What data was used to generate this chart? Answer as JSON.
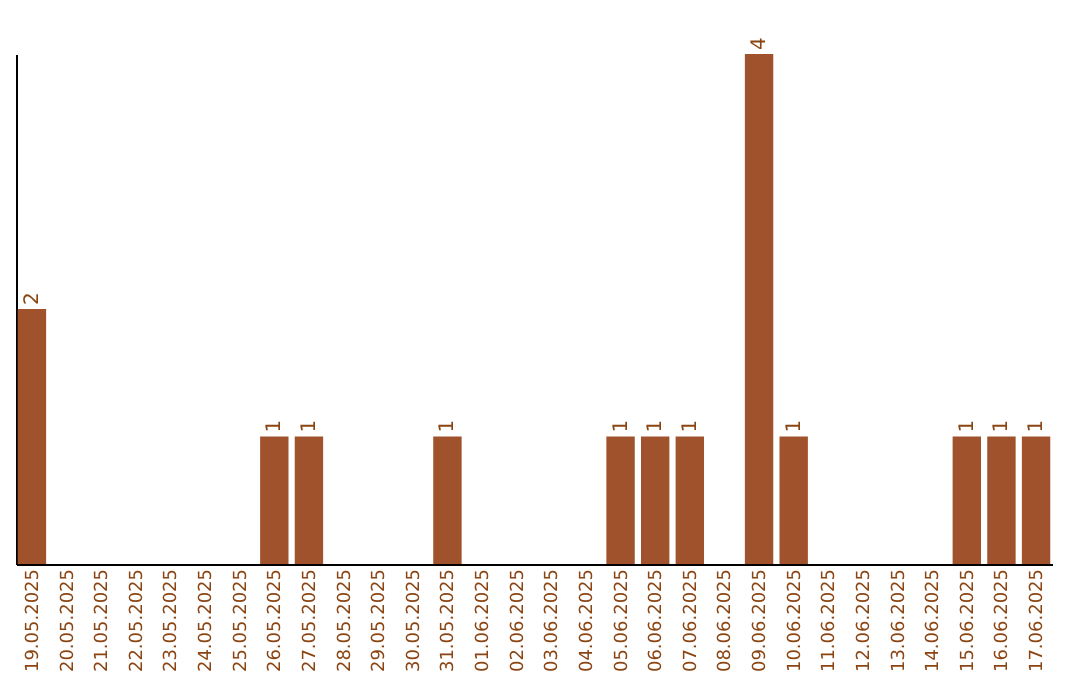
{
  "chart_data": {
    "type": "bar",
    "categories": [
      "19.05.2025",
      "20.05.2025",
      "21.05.2025",
      "22.05.2025",
      "23.05.2025",
      "24.05.2025",
      "25.05.2025",
      "26.05.2025",
      "27.05.2025",
      "28.05.2025",
      "29.05.2025",
      "30.05.2025",
      "31.05.2025",
      "01.06.2025",
      "02.06.2025",
      "03.06.2025",
      "04.06.2025",
      "05.06.2025",
      "06.06.2025",
      "07.06.2025",
      "08.06.2025",
      "09.06.2025",
      "10.06.2025",
      "11.06.2025",
      "12.06.2025",
      "13.06.2025",
      "14.06.2025",
      "15.06.2025",
      "16.06.2025",
      "17.06.2025"
    ],
    "values": [
      2,
      0,
      0,
      0,
      0,
      0,
      0,
      1,
      1,
      0,
      0,
      0,
      1,
      0,
      0,
      0,
      0,
      1,
      1,
      1,
      0,
      4,
      1,
      0,
      0,
      0,
      0,
      1,
      1,
      1
    ],
    "value_labels": [
      "2",
      null,
      null,
      null,
      null,
      null,
      null,
      "1",
      "1",
      null,
      null,
      null,
      "1",
      null,
      null,
      null,
      null,
      "1",
      "1",
      "1",
      null,
      "4",
      "1",
      null,
      null,
      null,
      null,
      "1",
      "1",
      "1"
    ],
    "color": "#a0522d",
    "grid": false,
    "tick_labels": "x"
  }
}
